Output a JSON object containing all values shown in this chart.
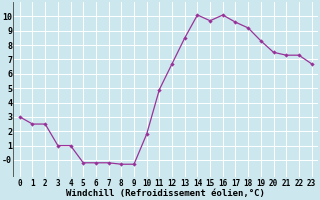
{
  "x": [
    0,
    1,
    2,
    3,
    4,
    5,
    6,
    7,
    8,
    9,
    10,
    11,
    12,
    13,
    14,
    15,
    16,
    17,
    18,
    19,
    20,
    21,
    22,
    23
  ],
  "y": [
    3.0,
    2.5,
    2.5,
    1.0,
    1.0,
    -0.2,
    -0.2,
    -0.2,
    -0.3,
    -0.3,
    1.8,
    4.9,
    6.7,
    8.5,
    10.1,
    9.7,
    10.1,
    9.6,
    9.2,
    8.3,
    7.5,
    7.3,
    7.3,
    6.7
  ],
  "color": "#993399",
  "bg_color": "#cce8ee",
  "grid_color": "#b0d8e0",
  "xlabel": "Windchill (Refroidissement éolien,°C)",
  "xlim": [
    -0.5,
    23.5
  ],
  "ylim": [
    -1.2,
    11.0
  ],
  "yticks": [
    0,
    1,
    2,
    3,
    4,
    5,
    6,
    7,
    8,
    9,
    10
  ],
  "xticks": [
    0,
    1,
    2,
    3,
    4,
    5,
    6,
    7,
    8,
    9,
    10,
    11,
    12,
    13,
    14,
    15,
    16,
    17,
    18,
    19,
    20,
    21,
    22,
    23
  ],
  "tick_fontsize": 5.5,
  "xlabel_fontsize": 6.5
}
